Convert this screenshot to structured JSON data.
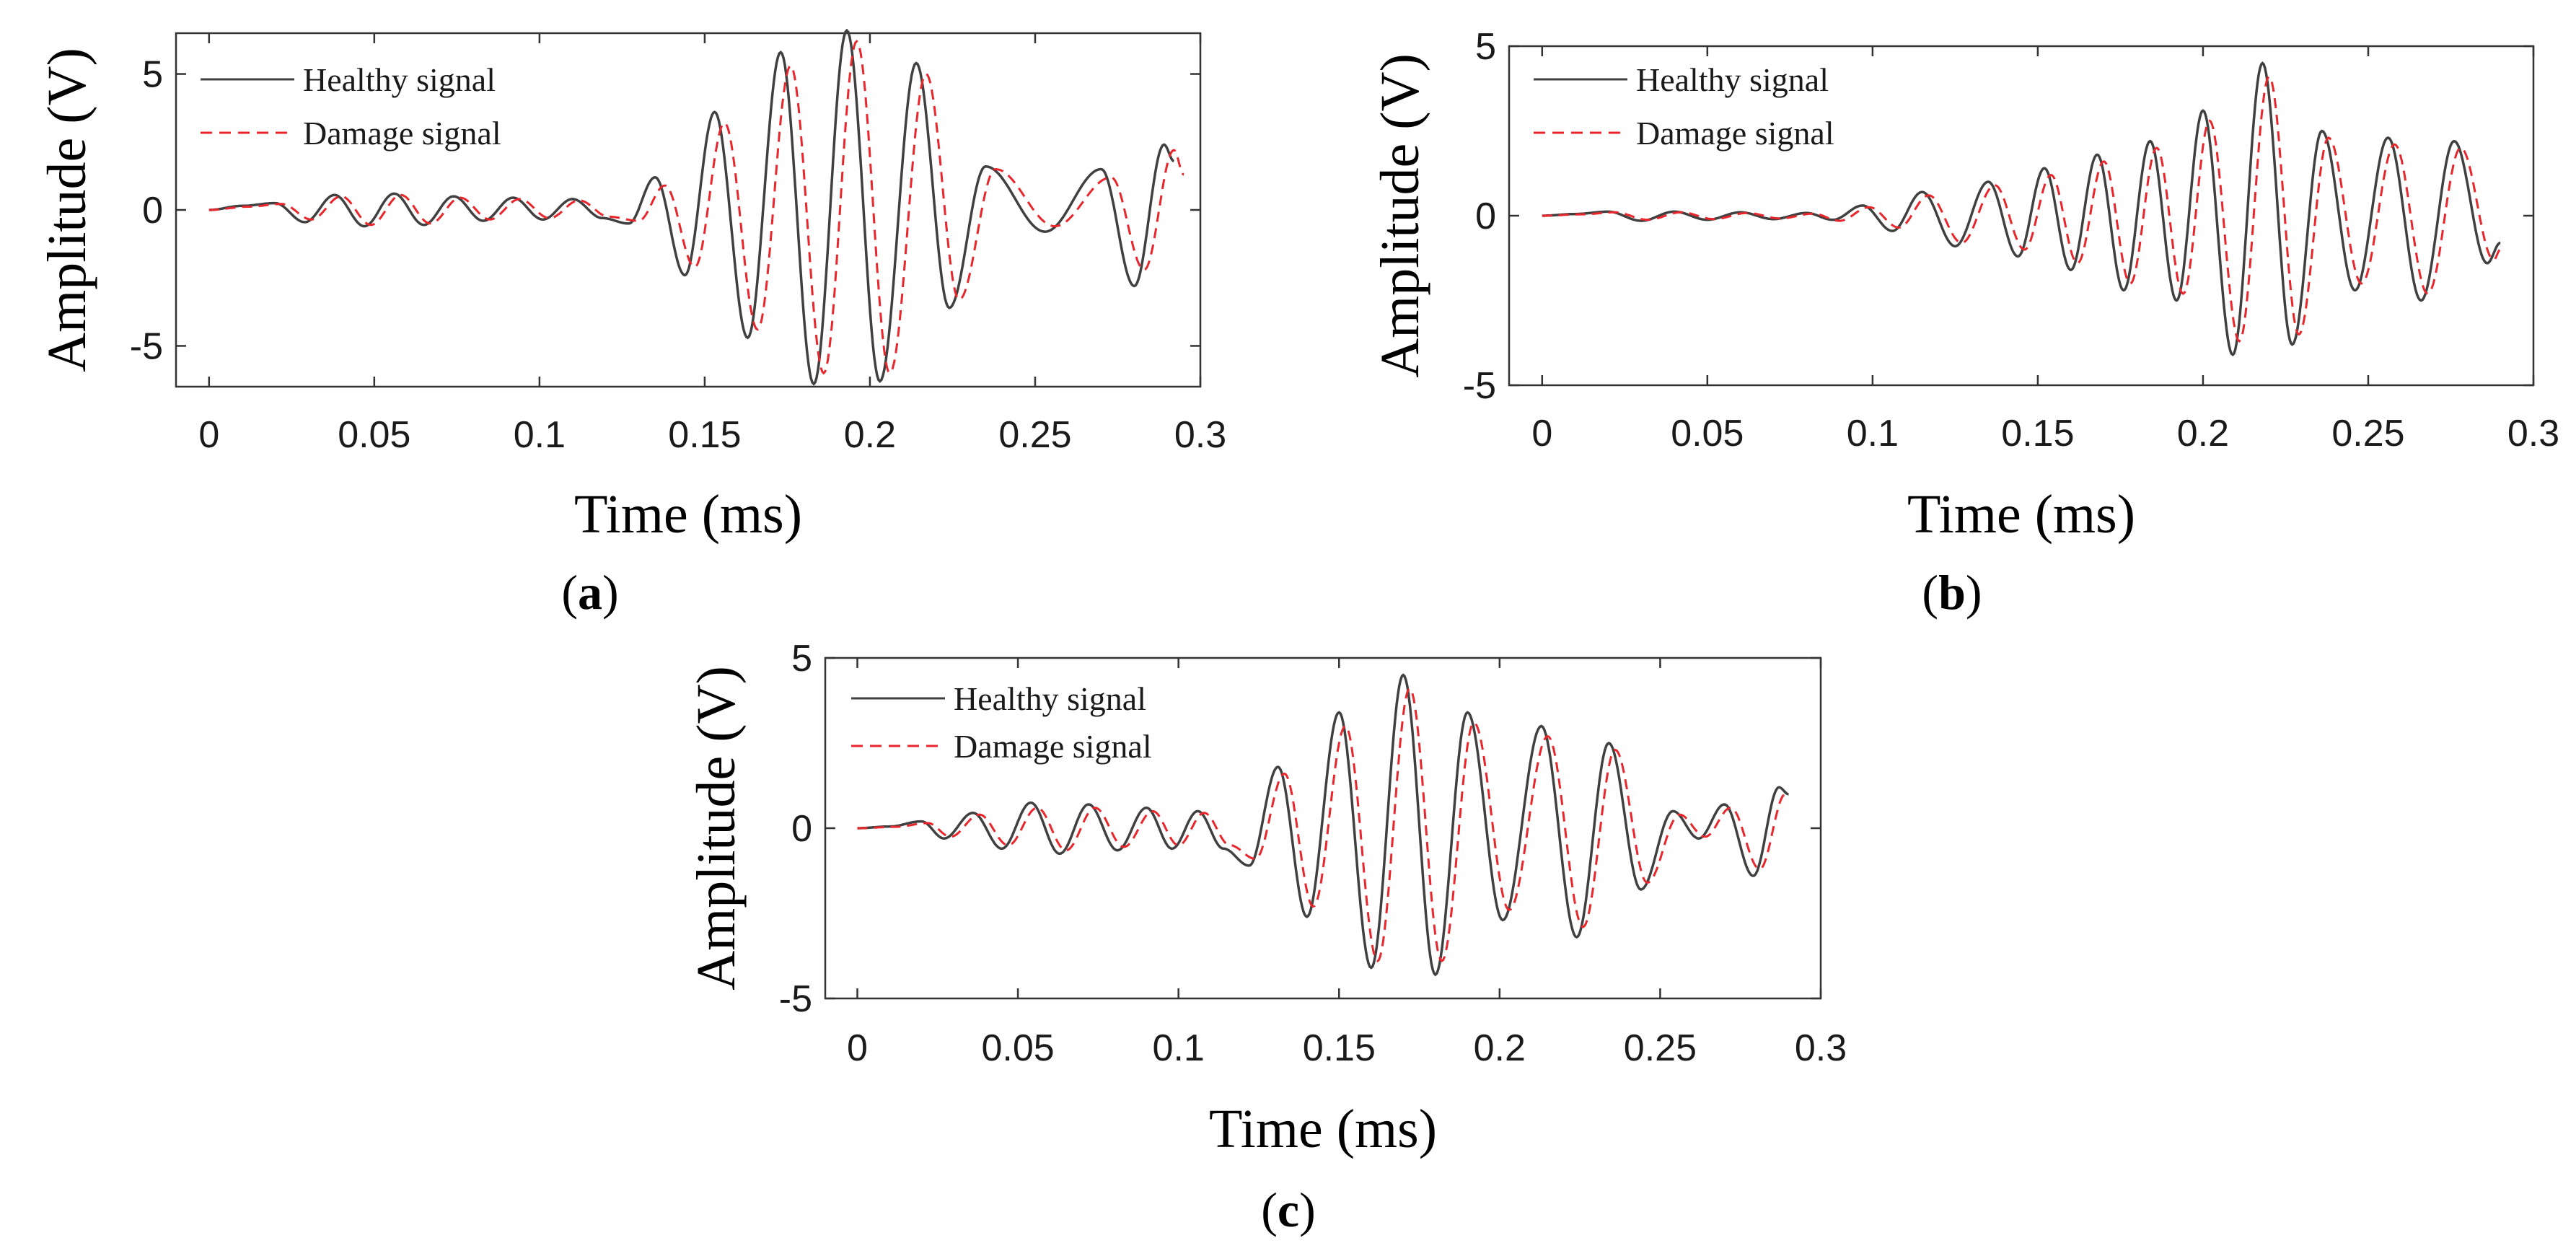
{
  "figure": {
    "description_labels": [
      "(a)",
      "(b)",
      "(c)"
    ]
  },
  "chart_data": [
    {
      "id": "a",
      "type": "line",
      "panel_label": "a",
      "title": "",
      "xlabel": "Time (ms)",
      "ylabel": "Amplitude (V)",
      "xlim": [
        -0.01,
        0.3
      ],
      "ylim": [
        -6.5,
        6.5
      ],
      "xticks": [
        0,
        0.05,
        0.1,
        0.15,
        0.2,
        0.25,
        0.3
      ],
      "xtick_labels": [
        "0",
        "0.05",
        "0.1",
        "0.15",
        "0.2",
        "0.25",
        "0.3"
      ],
      "yticks": [
        -5,
        0,
        5
      ],
      "ytick_labels": [
        "-5",
        "0",
        "5"
      ],
      "grid": false,
      "legend_position": "top-left",
      "series": [
        {
          "name": "Healthy signal",
          "color": "#404040",
          "style": "solid",
          "x_end": 0.292,
          "peaks": [
            [
              0.0,
              0.0
            ],
            [
              0.01,
              0.15
            ],
            [
              0.02,
              0.25
            ],
            [
              0.029,
              -0.45
            ],
            [
              0.038,
              0.55
            ],
            [
              0.047,
              -0.6
            ],
            [
              0.056,
              0.6
            ],
            [
              0.065,
              -0.55
            ],
            [
              0.074,
              0.5
            ],
            [
              0.083,
              -0.4
            ],
            [
              0.092,
              0.45
            ],
            [
              0.101,
              -0.35
            ],
            [
              0.11,
              0.4
            ],
            [
              0.119,
              -0.3
            ],
            [
              0.127,
              -0.5
            ],
            [
              0.135,
              1.2
            ],
            [
              0.144,
              -2.4
            ],
            [
              0.153,
              3.6
            ],
            [
              0.163,
              -4.7
            ],
            [
              0.173,
              5.8
            ],
            [
              0.183,
              -6.4
            ],
            [
              0.193,
              6.6
            ],
            [
              0.203,
              -6.3
            ],
            [
              0.214,
              5.4
            ],
            [
              0.224,
              -3.6
            ],
            [
              0.235,
              1.6
            ],
            [
              0.253,
              -0.8
            ],
            [
              0.27,
              1.5
            ],
            [
              0.28,
              -2.8
            ],
            [
              0.289,
              2.4
            ],
            [
              0.292,
              1.8
            ]
          ]
        },
        {
          "name": "Damage signal",
          "color": "#e8262b",
          "style": "dashed",
          "x_end": 0.295,
          "peaks": [
            [
              0.0,
              0.0
            ],
            [
              0.012,
              0.12
            ],
            [
              0.022,
              0.22
            ],
            [
              0.031,
              -0.35
            ],
            [
              0.04,
              0.5
            ],
            [
              0.049,
              -0.55
            ],
            [
              0.058,
              0.55
            ],
            [
              0.067,
              -0.5
            ],
            [
              0.076,
              0.45
            ],
            [
              0.085,
              -0.35
            ],
            [
              0.094,
              0.4
            ],
            [
              0.103,
              -0.3
            ],
            [
              0.112,
              0.35
            ],
            [
              0.121,
              -0.25
            ],
            [
              0.13,
              -0.4
            ],
            [
              0.138,
              0.9
            ],
            [
              0.147,
              -2.1
            ],
            [
              0.156,
              3.2
            ],
            [
              0.166,
              -4.4
            ],
            [
              0.176,
              5.3
            ],
            [
              0.186,
              -6.0
            ],
            [
              0.196,
              6.2
            ],
            [
              0.206,
              -6.0
            ],
            [
              0.217,
              5.0
            ],
            [
              0.227,
              -3.3
            ],
            [
              0.238,
              1.5
            ],
            [
              0.256,
              -0.6
            ],
            [
              0.273,
              1.2
            ],
            [
              0.283,
              -2.2
            ],
            [
              0.292,
              2.2
            ],
            [
              0.295,
              1.3
            ]
          ]
        }
      ]
    },
    {
      "id": "b",
      "type": "line",
      "panel_label": "b",
      "title": "",
      "xlabel": "Time (ms)",
      "ylabel": "Amplitude (V)",
      "xlim": [
        -0.01,
        0.3
      ],
      "ylim": [
        -5,
        5
      ],
      "xticks": [
        0,
        0.05,
        0.1,
        0.15,
        0.2,
        0.25,
        0.3
      ],
      "xtick_labels": [
        "0",
        "0.05",
        "0.1",
        "0.15",
        "0.2",
        "0.25",
        "0.3"
      ],
      "yticks": [
        -5,
        0,
        5
      ],
      "ytick_labels": [
        "-5",
        "0",
        "5"
      ],
      "grid": false,
      "legend_position": "top-left",
      "series": [
        {
          "name": "Healthy signal",
          "color": "#404040",
          "style": "solid",
          "x_end": 0.29,
          "peaks": [
            [
              0.0,
              0.0
            ],
            [
              0.01,
              0.05
            ],
            [
              0.02,
              0.12
            ],
            [
              0.03,
              -0.15
            ],
            [
              0.04,
              0.12
            ],
            [
              0.05,
              -0.12
            ],
            [
              0.06,
              0.1
            ],
            [
              0.07,
              -0.1
            ],
            [
              0.08,
              0.08
            ],
            [
              0.088,
              -0.12
            ],
            [
              0.097,
              0.3
            ],
            [
              0.106,
              -0.45
            ],
            [
              0.115,
              0.7
            ],
            [
              0.125,
              -0.9
            ],
            [
              0.135,
              1.0
            ],
            [
              0.144,
              -1.2
            ],
            [
              0.152,
              1.4
            ],
            [
              0.16,
              -1.6
            ],
            [
              0.168,
              1.8
            ],
            [
              0.176,
              -2.2
            ],
            [
              0.184,
              2.2
            ],
            [
              0.192,
              -2.5
            ],
            [
              0.2,
              3.1
            ],
            [
              0.209,
              -4.1
            ],
            [
              0.218,
              4.5
            ],
            [
              0.227,
              -3.8
            ],
            [
              0.236,
              2.5
            ],
            [
              0.246,
              -2.2
            ],
            [
              0.256,
              2.3
            ],
            [
              0.266,
              -2.5
            ],
            [
              0.276,
              2.2
            ],
            [
              0.286,
              -1.4
            ],
            [
              0.29,
              -0.8
            ]
          ]
        },
        {
          "name": "Damage signal",
          "color": "#e8262b",
          "style": "dashed",
          "x_end": 0.29,
          "peaks": [
            [
              0.0,
              0.0
            ],
            [
              0.012,
              0.04
            ],
            [
              0.022,
              0.1
            ],
            [
              0.032,
              -0.12
            ],
            [
              0.042,
              0.1
            ],
            [
              0.052,
              -0.1
            ],
            [
              0.062,
              0.08
            ],
            [
              0.072,
              -0.08
            ],
            [
              0.082,
              0.06
            ],
            [
              0.09,
              -0.15
            ],
            [
              0.099,
              0.25
            ],
            [
              0.108,
              -0.35
            ],
            [
              0.117,
              0.6
            ],
            [
              0.127,
              -0.8
            ],
            [
              0.137,
              0.9
            ],
            [
              0.146,
              -1.0
            ],
            [
              0.154,
              1.2
            ],
            [
              0.162,
              -1.4
            ],
            [
              0.17,
              1.6
            ],
            [
              0.178,
              -2.0
            ],
            [
              0.186,
              2.0
            ],
            [
              0.194,
              -2.3
            ],
            [
              0.202,
              2.8
            ],
            [
              0.211,
              -3.7
            ],
            [
              0.22,
              4.1
            ],
            [
              0.229,
              -3.5
            ],
            [
              0.238,
              2.3
            ],
            [
              0.248,
              -2.0
            ],
            [
              0.258,
              2.1
            ],
            [
              0.268,
              -2.3
            ],
            [
              0.278,
              2.0
            ],
            [
              0.288,
              -1.3
            ],
            [
              0.29,
              -1.0
            ]
          ]
        }
      ]
    },
    {
      "id": "c",
      "type": "line",
      "panel_label": "c",
      "title": "",
      "xlabel": "Time (ms)",
      "ylabel": "Amplitude (V)",
      "xlim": [
        -0.01,
        0.3
      ],
      "ylim": [
        -5,
        5
      ],
      "xticks": [
        0,
        0.05,
        0.1,
        0.15,
        0.2,
        0.25,
        0.3
      ],
      "xtick_labels": [
        "0",
        "0.05",
        "0.1",
        "0.15",
        "0.2",
        "0.25",
        "0.3"
      ],
      "yticks": [
        -5,
        0,
        5
      ],
      "ytick_labels": [
        "-5",
        "0",
        "5"
      ],
      "grid": false,
      "legend_position": "top-left",
      "series": [
        {
          "name": "Healthy signal",
          "color": "#404040",
          "style": "solid",
          "x_end": 0.29,
          "peaks": [
            [
              0.0,
              0.0
            ],
            [
              0.01,
              0.05
            ],
            [
              0.02,
              0.2
            ],
            [
              0.027,
              -0.3
            ],
            [
              0.036,
              0.45
            ],
            [
              0.045,
              -0.6
            ],
            [
              0.054,
              0.75
            ],
            [
              0.063,
              -0.75
            ],
            [
              0.072,
              0.7
            ],
            [
              0.081,
              -0.65
            ],
            [
              0.09,
              0.6
            ],
            [
              0.098,
              -0.6
            ],
            [
              0.106,
              0.5
            ],
            [
              0.114,
              -0.6
            ],
            [
              0.122,
              -1.1
            ],
            [
              0.131,
              1.8
            ],
            [
              0.14,
              -2.6
            ],
            [
              0.15,
              3.4
            ],
            [
              0.16,
              -4.1
            ],
            [
              0.17,
              4.5
            ],
            [
              0.18,
              -4.3
            ],
            [
              0.19,
              3.4
            ],
            [
              0.201,
              -2.7
            ],
            [
              0.213,
              3.0
            ],
            [
              0.224,
              -3.2
            ],
            [
              0.234,
              2.5
            ],
            [
              0.244,
              -1.8
            ],
            [
              0.254,
              0.5
            ],
            [
              0.262,
              -0.3
            ],
            [
              0.27,
              0.7
            ],
            [
              0.279,
              -1.4
            ],
            [
              0.287,
              1.2
            ],
            [
              0.29,
              1.0
            ]
          ]
        },
        {
          "name": "Damage signal",
          "color": "#e8262b",
          "style": "dashed",
          "x_end": 0.29,
          "peaks": [
            [
              0.0,
              0.0
            ],
            [
              0.012,
              0.04
            ],
            [
              0.022,
              0.15
            ],
            [
              0.029,
              -0.25
            ],
            [
              0.038,
              0.4
            ],
            [
              0.047,
              -0.5
            ],
            [
              0.056,
              0.6
            ],
            [
              0.065,
              -0.65
            ],
            [
              0.074,
              0.6
            ],
            [
              0.083,
              -0.55
            ],
            [
              0.092,
              0.5
            ],
            [
              0.1,
              -0.5
            ],
            [
              0.108,
              0.45
            ],
            [
              0.116,
              -0.5
            ],
            [
              0.124,
              -0.9
            ],
            [
              0.133,
              1.6
            ],
            [
              0.142,
              -2.3
            ],
            [
              0.152,
              3.0
            ],
            [
              0.162,
              -3.9
            ],
            [
              0.172,
              4.1
            ],
            [
              0.182,
              -3.9
            ],
            [
              0.192,
              3.1
            ],
            [
              0.203,
              -2.4
            ],
            [
              0.215,
              2.7
            ],
            [
              0.226,
              -2.9
            ],
            [
              0.236,
              2.3
            ],
            [
              0.246,
              -1.6
            ],
            [
              0.256,
              0.4
            ],
            [
              0.264,
              -0.25
            ],
            [
              0.272,
              0.6
            ],
            [
              0.281,
              -1.2
            ],
            [
              0.289,
              1.0
            ],
            [
              0.29,
              1.0
            ]
          ]
        }
      ]
    }
  ]
}
